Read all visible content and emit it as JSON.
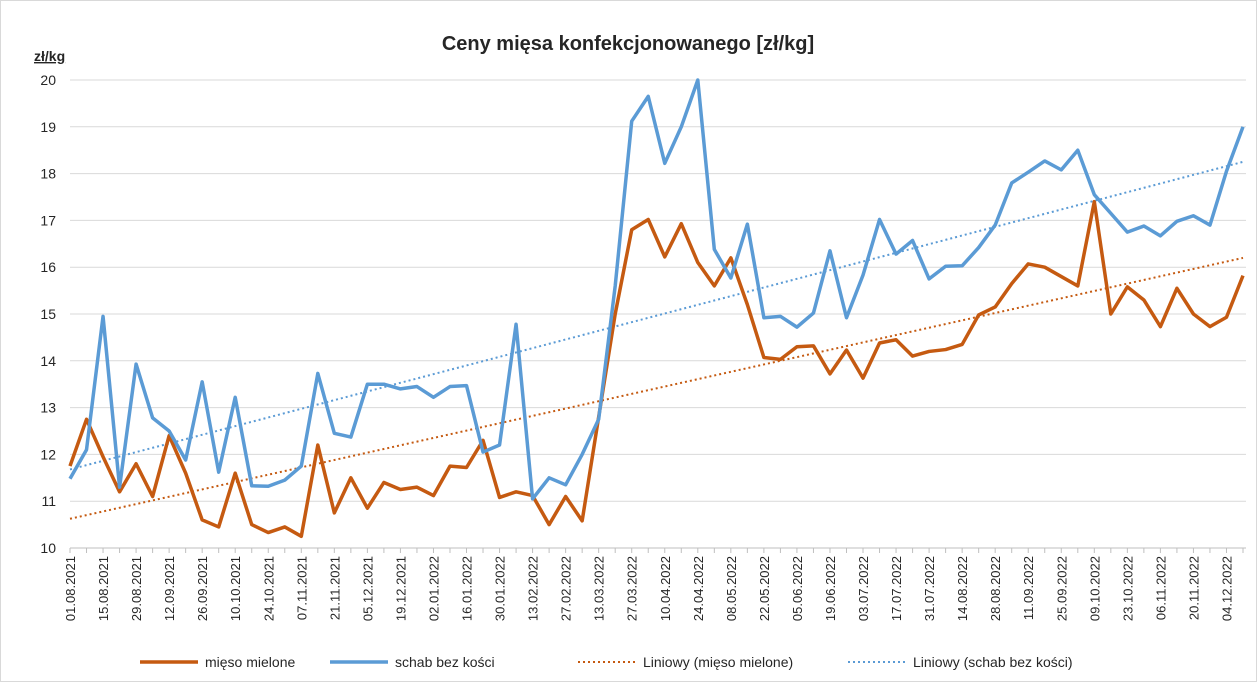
{
  "chart_data": {
    "type": "line",
    "title": "Ceny mięsa konfekcjonowanego [zł/kg]",
    "y_label": "zł/kg",
    "categories": [
      "01.08.2021",
      null,
      "15.08.2021",
      null,
      "29.08.2021",
      null,
      "12.09.2021",
      null,
      "26.09.2021",
      null,
      "10.10.2021",
      null,
      "24.10.2021",
      null,
      "07.11.2021",
      null,
      "21.11.2021",
      null,
      "05.12.2021",
      null,
      "19.12.2021",
      null,
      "02.01.2022",
      null,
      "16.01.2022",
      null,
      "30.01.2022",
      null,
      "13.02.2022",
      null,
      "27.02.2022",
      null,
      "13.03.2022",
      null,
      "27.03.2022",
      null,
      "10.04.2022",
      null,
      "24.04.2022",
      null,
      "08.05.2022",
      null,
      "22.05.2022",
      null,
      "05.06.2022",
      null,
      "19.06.2022",
      null,
      "03.07.2022",
      null,
      "17.07.2022",
      null,
      "31.07.2022",
      null,
      "14.08.2022",
      null,
      "28.08.2022",
      null,
      "11.09.2022",
      null,
      "25.09.2022",
      null,
      "09.10.2022",
      null,
      "23.10.2022",
      null,
      "06.11.2022",
      null,
      "20.11.2022",
      null,
      "04.12.2022",
      null
    ],
    "series": [
      {
        "name": "mięso mielone",
        "color": "#c55a11",
        "values": [
          11.75,
          12.75,
          11.95,
          11.2,
          11.8,
          11.1,
          12.4,
          11.6,
          10.6,
          10.45,
          11.6,
          10.5,
          10.33,
          10.45,
          10.25,
          12.2,
          10.75,
          11.5,
          10.85,
          11.4,
          11.25,
          11.3,
          11.12,
          11.75,
          11.72,
          12.3,
          11.08,
          11.2,
          11.12,
          10.5,
          11.1,
          10.58,
          12.8,
          15.0,
          16.8,
          17.02,
          16.22,
          16.93,
          16.1,
          15.6,
          16.2,
          15.2,
          14.07,
          14.03,
          14.3,
          14.32,
          13.72,
          14.23,
          13.63,
          14.38,
          14.45,
          14.1,
          14.2,
          14.24,
          14.35,
          14.98,
          15.15,
          15.65,
          16.07,
          16.0,
          15.8,
          15.6,
          17.4,
          15.0,
          15.58,
          15.3,
          14.73,
          15.55,
          15.0,
          14.73,
          14.93,
          15.82
        ]
      },
      {
        "name": "schab bez kości",
        "color": "#5b9bd5",
        "values": [
          11.48,
          12.1,
          14.95,
          11.3,
          13.93,
          12.78,
          12.5,
          11.88,
          13.55,
          11.62,
          13.22,
          11.33,
          11.32,
          11.45,
          11.75,
          13.73,
          12.45,
          12.37,
          13.5,
          13.5,
          13.4,
          13.45,
          13.22,
          13.45,
          13.47,
          12.05,
          12.2,
          14.78,
          11.05,
          11.5,
          11.35,
          12.0,
          12.75,
          15.6,
          19.12,
          19.65,
          18.22,
          19.0,
          20.0,
          16.38,
          15.77,
          16.92,
          14.92,
          14.95,
          14.72,
          15.02,
          16.35,
          14.92,
          15.83,
          17.02,
          16.28,
          16.57,
          15.75,
          16.02,
          16.03,
          16.42,
          16.9,
          17.8,
          18.03,
          18.27,
          18.08,
          18.5,
          17.55,
          17.15,
          16.75,
          16.88,
          16.67,
          16.98,
          17.1,
          16.9,
          18.05,
          19.0
        ]
      }
    ],
    "trendlines": [
      {
        "name": "Liniowy (mięso mielone)",
        "color": "#c55a11"
      },
      {
        "name": "Liniowy (schab bez kości)",
        "color": "#5b9bd5"
      }
    ],
    "ylim": [
      10,
      20
    ],
    "yticks": [
      10,
      11,
      12,
      13,
      14,
      15,
      16,
      17,
      18,
      19,
      20
    ],
    "grid": true,
    "legend": "bottom"
  }
}
